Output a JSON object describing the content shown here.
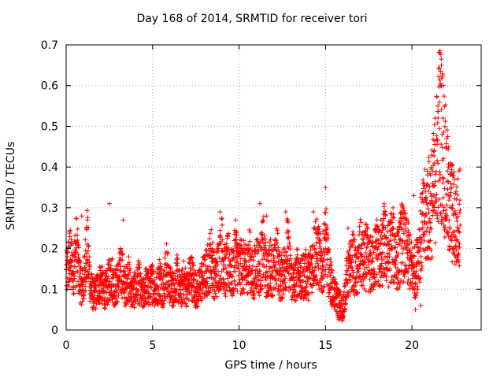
{
  "chart_data": {
    "type": "scatter",
    "title": "Day 168 of 2014, SRMTID for receiver tori",
    "xlabel": "GPS time / hours",
    "ylabel": "SRMTID / TECUs",
    "xlim": [
      0,
      24
    ],
    "ylim": [
      0,
      0.7
    ],
    "xticks": [
      "0",
      "5",
      "10",
      "15",
      "20"
    ],
    "yticks": [
      "0",
      "0.1",
      "0.2",
      "0.3",
      "0.4",
      "0.5",
      "0.6",
      "0.7"
    ],
    "grid": true,
    "marker": "+",
    "color": "#ff0000",
    "series": [
      {
        "name": "SRMTID",
        "x": [
          0.0,
          0.2,
          0.4,
          0.6,
          0.8,
          1.0,
          1.2,
          1.4,
          1.6,
          1.8,
          2.0,
          2.2,
          2.4,
          2.6,
          2.8,
          3.0,
          3.2,
          3.4,
          3.6,
          3.8,
          4.0,
          4.2,
          4.4,
          4.6,
          4.8,
          5.0,
          5.2,
          5.4,
          5.6,
          5.8,
          6.0,
          6.2,
          6.4,
          6.6,
          6.8,
          7.0,
          7.2,
          7.4,
          7.6,
          7.8,
          8.0,
          8.2,
          8.4,
          8.6,
          8.8,
          9.0,
          9.2,
          9.4,
          9.6,
          9.8,
          10.0,
          10.2,
          10.4,
          10.6,
          10.8,
          11.0,
          11.2,
          11.4,
          11.6,
          11.8,
          12.0,
          12.2,
          12.4,
          12.6,
          12.8,
          13.0,
          13.2,
          13.4,
          13.6,
          13.8,
          14.0,
          14.2,
          14.4,
          14.6,
          14.8,
          15.0,
          15.2,
          15.4,
          15.6,
          15.8,
          16.0,
          16.2,
          16.4,
          16.6,
          16.8,
          17.0,
          17.2,
          17.4,
          17.6,
          17.8,
          18.0,
          18.2,
          18.4,
          18.6,
          18.8,
          19.0,
          19.2,
          19.4,
          19.6,
          19.8,
          20.0,
          20.2,
          20.4,
          20.6,
          20.8,
          21.0,
          21.2,
          21.4,
          21.6,
          21.8,
          22.0,
          22.2,
          22.4,
          22.6,
          22.8
        ],
        "y": [
          0.13,
          0.18,
          0.15,
          0.2,
          0.12,
          0.1,
          0.22,
          0.11,
          0.08,
          0.1,
          0.12,
          0.09,
          0.11,
          0.14,
          0.1,
          0.12,
          0.15,
          0.1,
          0.13,
          0.09,
          0.1,
          0.12,
          0.08,
          0.11,
          0.1,
          0.12,
          0.09,
          0.13,
          0.1,
          0.15,
          0.11,
          0.1,
          0.13,
          0.09,
          0.12,
          0.1,
          0.14,
          0.11,
          0.09,
          0.12,
          0.13,
          0.15,
          0.18,
          0.12,
          0.16,
          0.2,
          0.14,
          0.17,
          0.13,
          0.19,
          0.15,
          0.16,
          0.14,
          0.18,
          0.12,
          0.17,
          0.15,
          0.2,
          0.13,
          0.16,
          0.14,
          0.18,
          0.12,
          0.15,
          0.2,
          0.13,
          0.11,
          0.15,
          0.12,
          0.14,
          0.13,
          0.16,
          0.2,
          0.18,
          0.15,
          0.22,
          0.14,
          0.1,
          0.08,
          0.06,
          0.04,
          0.12,
          0.15,
          0.17,
          0.13,
          0.19,
          0.16,
          0.18,
          0.15,
          0.17,
          0.2,
          0.16,
          0.22,
          0.18,
          0.21,
          0.19,
          0.17,
          0.22,
          0.2,
          0.18,
          0.15,
          0.14,
          0.2,
          0.25,
          0.28,
          0.3,
          0.32,
          0.4,
          0.5,
          0.45,
          0.35,
          0.3,
          0.28,
          0.25,
          0.3
        ],
        "x_extra": [
          0.9,
          2.5,
          3.3,
          8.9,
          9.8,
          11.2,
          11.6,
          12.7,
          14.3,
          15.0,
          16.3,
          17.3,
          17.6,
          18.2,
          18.9,
          19.4,
          20.1,
          20.2,
          20.5,
          21.3,
          21.5,
          21.6,
          21.7,
          21.7,
          21.8,
          22.0,
          22.1,
          22.2,
          22.3,
          22.5
        ],
        "y_extra": [
          0.28,
          0.31,
          0.27,
          0.29,
          0.27,
          0.31,
          0.28,
          0.29,
          0.29,
          0.35,
          0.25,
          0.26,
          0.23,
          0.27,
          0.3,
          0.29,
          0.33,
          0.05,
          0.06,
          0.41,
          0.55,
          0.68,
          0.65,
          0.6,
          0.52,
          0.47,
          0.4,
          0.33,
          0.22,
          0.23
        ]
      }
    ]
  }
}
